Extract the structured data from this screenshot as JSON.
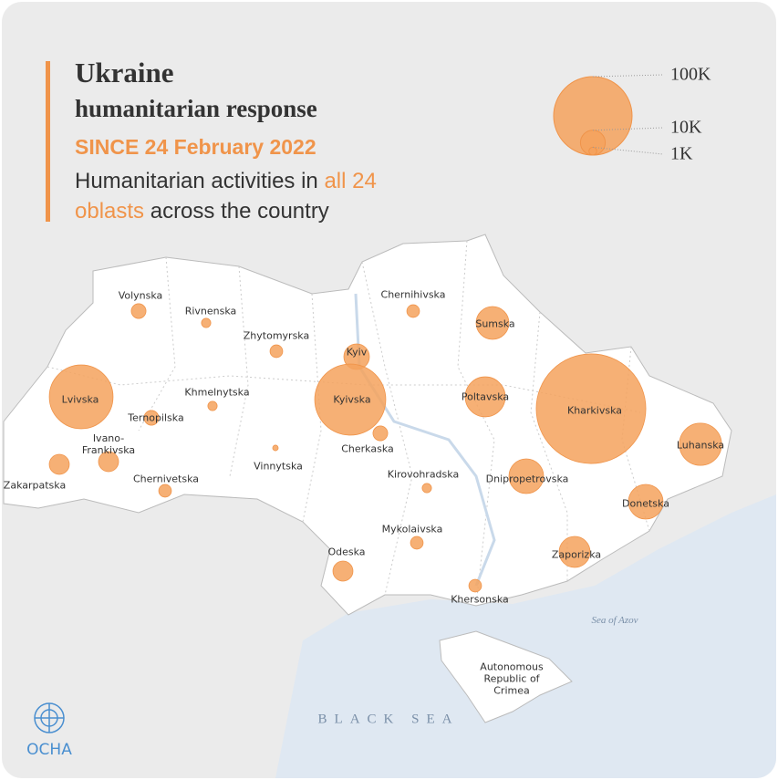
{
  "header": {
    "title": "Ukraine",
    "subtitle": "humanitarian response",
    "date": "SINCE 24 February 2022",
    "description": [
      "Humanitarian activities in ",
      "all 24 oblasts",
      " across the country"
    ]
  },
  "legend": [
    {
      "value": 100000,
      "label": "100K"
    },
    {
      "value": 10000,
      "label": "10K"
    },
    {
      "value": 1000,
      "label": "1K"
    }
  ],
  "oblasts": [
    {
      "name": "Volynska",
      "value": 3500
    },
    {
      "name": "Rivnenska",
      "value": 1400
    },
    {
      "name": "Zhytomyrska",
      "value": 2600
    },
    {
      "name": "Chernihivska",
      "value": 2600
    },
    {
      "name": "Sumska",
      "value": 17500
    },
    {
      "name": "Kyiv",
      "value": 10600
    },
    {
      "name": "Kyivska",
      "value": 82000
    },
    {
      "name": "Poltavska",
      "value": 26000
    },
    {
      "name": "Kharkivska",
      "value": 195000
    },
    {
      "name": "Luhanska",
      "value": 29000
    },
    {
      "name": "Lvivska",
      "value": 66000
    },
    {
      "name": "Khmelnytska",
      "value": 1400
    },
    {
      "name": "Ternopilska",
      "value": 3500
    },
    {
      "name": "Ivano-Frankivska",
      "value": 6500
    },
    {
      "name": "Zakarpatska",
      "value": 6500
    },
    {
      "name": "Chernivetska",
      "value": 2600
    },
    {
      "name": "Vinnytska",
      "value": 500
    },
    {
      "name": "Cherkaska",
      "value": 3500
    },
    {
      "name": "Kirovohradska",
      "value": 1400
    },
    {
      "name": "Dnipropetrovska",
      "value": 19500
    },
    {
      "name": "Donetska",
      "value": 19500
    },
    {
      "name": "Zaporizka",
      "value": 15600
    },
    {
      "name": "Mykolaivska",
      "value": 2600
    },
    {
      "name": "Odeska",
      "value": 6500
    },
    {
      "name": "Khersonska",
      "value": 2600
    }
  ],
  "map_labels": {
    "sea_of_azov": "Sea of Azov",
    "black_sea": "BLACK SEA",
    "crimea": "Autonomous Republic of Crimea"
  },
  "logo": "OCHA"
}
